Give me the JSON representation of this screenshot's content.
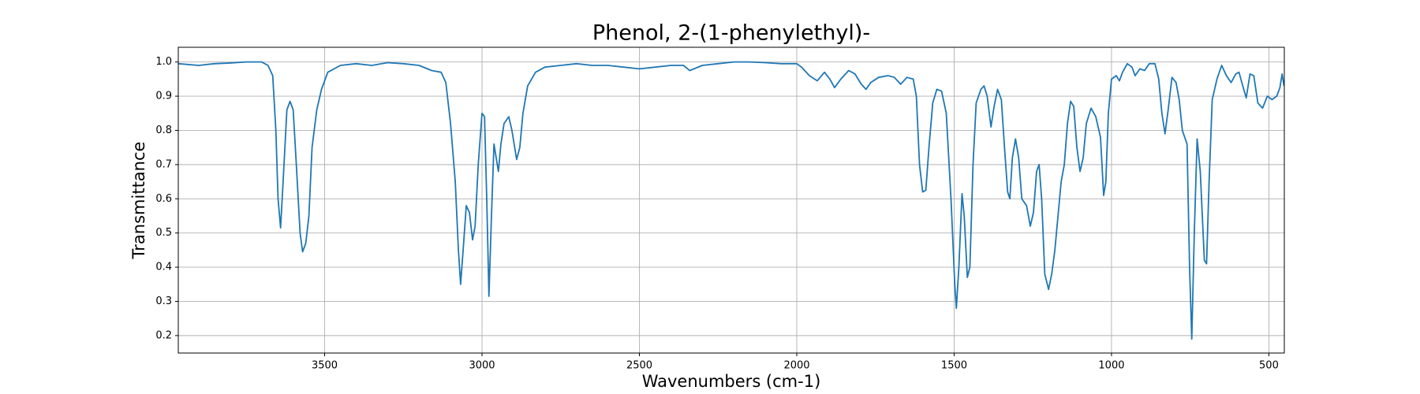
{
  "chart_data": {
    "type": "line",
    "title": "Phenol, 2-(1-phenylethyl)-",
    "x_label": "Wavenumbers (cm-1)",
    "y_label": "Transmittance",
    "color": "#1f77b4",
    "grid": true,
    "x_reversed": true,
    "xlim": [
      3965,
      451
    ],
    "ylim": [
      0.149,
      1.043
    ],
    "xticks": [
      3500,
      3000,
      2500,
      2000,
      1500,
      1000,
      500
    ],
    "yticks": [
      0.2,
      0.3,
      0.4,
      0.5,
      0.6,
      0.7,
      0.8,
      0.9,
      {
        "value": 1,
        "label": "1.0"
      }
    ],
    "x": [
      3965,
      3900,
      3850,
      3800,
      3750,
      3700,
      3680,
      3665,
      3655,
      3648,
      3640,
      3632,
      3620,
      3610,
      3600,
      3590,
      3578,
      3570,
      3560,
      3550,
      3540,
      3525,
      3510,
      3490,
      3450,
      3400,
      3350,
      3300,
      3250,
      3200,
      3160,
      3130,
      3115,
      3100,
      3085,
      3075,
      3068,
      3060,
      3050,
      3040,
      3030,
      3022,
      3012,
      3000,
      2992,
      2985,
      2978,
      2970,
      2962,
      2955,
      2948,
      2940,
      2930,
      2915,
      2905,
      2890,
      2880,
      2870,
      2855,
      2830,
      2800,
      2750,
      2700,
      2650,
      2600,
      2550,
      2500,
      2450,
      2400,
      2360,
      2340,
      2300,
      2250,
      2200,
      2150,
      2100,
      2050,
      2000,
      1985,
      1960,
      1935,
      1912,
      1895,
      1880,
      1860,
      1835,
      1815,
      1795,
      1780,
      1765,
      1740,
      1710,
      1690,
      1670,
      1650,
      1630,
      1620,
      1610,
      1600,
      1590,
      1580,
      1568,
      1555,
      1540,
      1525,
      1510,
      1498,
      1493,
      1485,
      1475,
      1468,
      1458,
      1450,
      1440,
      1430,
      1415,
      1405,
      1395,
      1383,
      1373,
      1362,
      1350,
      1340,
      1330,
      1323,
      1315,
      1305,
      1295,
      1285,
      1270,
      1258,
      1248,
      1238,
      1230,
      1222,
      1212,
      1200,
      1190,
      1180,
      1170,
      1160,
      1150,
      1140,
      1130,
      1120,
      1110,
      1100,
      1090,
      1080,
      1065,
      1050,
      1035,
      1025,
      1018,
      1010,
      1000,
      985,
      975,
      965,
      950,
      935,
      925,
      910,
      895,
      880,
      862,
      850,
      840,
      830,
      820,
      808,
      795,
      785,
      775,
      760,
      752,
      745,
      737,
      728,
      718,
      705,
      698,
      690,
      680,
      665,
      650,
      635,
      620,
      605,
      595,
      583,
      572,
      560,
      548,
      535,
      520,
      505,
      490,
      475,
      465,
      458,
      452
    ],
    "y": [
      0.995,
      0.99,
      0.995,
      0.997,
      1.0,
      1.0,
      0.99,
      0.96,
      0.8,
      0.6,
      0.515,
      0.65,
      0.86,
      0.885,
      0.86,
      0.7,
      0.5,
      0.445,
      0.47,
      0.55,
      0.75,
      0.86,
      0.92,
      0.97,
      0.99,
      0.995,
      0.99,
      0.998,
      0.995,
      0.99,
      0.975,
      0.97,
      0.94,
      0.82,
      0.65,
      0.45,
      0.35,
      0.45,
      0.58,
      0.56,
      0.48,
      0.52,
      0.7,
      0.85,
      0.84,
      0.6,
      0.315,
      0.55,
      0.76,
      0.72,
      0.68,
      0.76,
      0.82,
      0.84,
      0.8,
      0.715,
      0.75,
      0.85,
      0.93,
      0.97,
      0.985,
      0.99,
      0.995,
      0.99,
      0.99,
      0.985,
      0.98,
      0.985,
      0.99,
      0.99,
      0.975,
      0.99,
      0.995,
      1.0,
      1.0,
      0.998,
      0.995,
      0.995,
      0.985,
      0.96,
      0.945,
      0.97,
      0.95,
      0.925,
      0.95,
      0.975,
      0.965,
      0.935,
      0.92,
      0.94,
      0.955,
      0.96,
      0.955,
      0.935,
      0.955,
      0.95,
      0.9,
      0.7,
      0.62,
      0.625,
      0.75,
      0.88,
      0.92,
      0.915,
      0.85,
      0.6,
      0.35,
      0.28,
      0.4,
      0.615,
      0.55,
      0.37,
      0.4,
      0.7,
      0.88,
      0.92,
      0.93,
      0.9,
      0.81,
      0.87,
      0.92,
      0.89,
      0.75,
      0.62,
      0.6,
      0.72,
      0.775,
      0.72,
      0.6,
      0.58,
      0.52,
      0.56,
      0.68,
      0.7,
      0.6,
      0.38,
      0.335,
      0.38,
      0.45,
      0.55,
      0.65,
      0.7,
      0.82,
      0.885,
      0.87,
      0.75,
      0.68,
      0.72,
      0.82,
      0.865,
      0.84,
      0.78,
      0.61,
      0.65,
      0.85,
      0.95,
      0.96,
      0.945,
      0.97,
      0.995,
      0.985,
      0.96,
      0.98,
      0.975,
      0.995,
      0.995,
      0.95,
      0.85,
      0.79,
      0.86,
      0.955,
      0.94,
      0.89,
      0.8,
      0.76,
      0.4,
      0.19,
      0.5,
      0.775,
      0.68,
      0.42,
      0.41,
      0.65,
      0.89,
      0.95,
      0.99,
      0.96,
      0.94,
      0.965,
      0.97,
      0.93,
      0.895,
      0.965,
      0.96,
      0.88,
      0.865,
      0.9,
      0.89,
      0.9,
      0.925,
      0.965,
      0.93
    ]
  }
}
